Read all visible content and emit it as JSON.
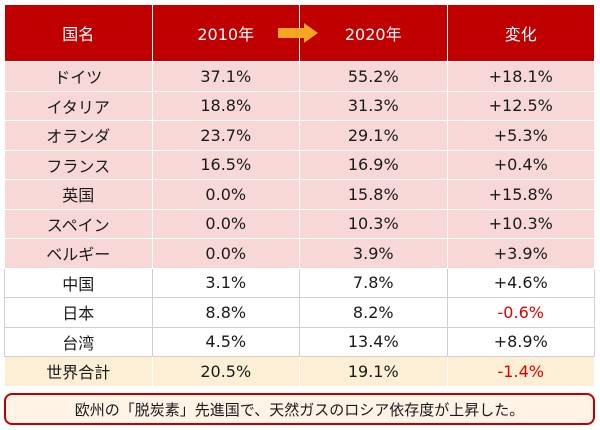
{
  "headers": {
    "country": "国名",
    "y2010": "2010年",
    "y2020": "2020年",
    "change": "変化"
  },
  "rows": [
    {
      "country": "ドイツ",
      "y2010": "37.1%",
      "y2020": "55.2%",
      "change": "+18.1%",
      "style": "hl",
      "negative": false
    },
    {
      "country": "イタリア",
      "y2010": "18.8%",
      "y2020": "31.3%",
      "change": "+12.5%",
      "style": "hl",
      "negative": false
    },
    {
      "country": "オランダ",
      "y2010": "23.7%",
      "y2020": "29.1%",
      "change": "+5.3%",
      "style": "hl",
      "negative": false
    },
    {
      "country": "フランス",
      "y2010": "16.5%",
      "y2020": "16.9%",
      "change": "+0.4%",
      "style": "hl",
      "negative": false
    },
    {
      "country": "英国",
      "y2010": "0.0%",
      "y2020": "15.8%",
      "change": "+15.8%",
      "style": "hl",
      "negative": false
    },
    {
      "country": "スペイン",
      "y2010": "0.0%",
      "y2020": "10.3%",
      "change": "+10.3%",
      "style": "hl",
      "negative": false
    },
    {
      "country": "ベルギー",
      "y2010": "0.0%",
      "y2020": "3.9%",
      "change": "+3.9%",
      "style": "hl",
      "negative": false
    },
    {
      "country": "中国",
      "y2010": "3.1%",
      "y2020": "7.8%",
      "change": "+4.6%",
      "style": "plain",
      "negative": false
    },
    {
      "country": "日本",
      "y2010": "8.8%",
      "y2020": "8.2%",
      "change": "-0.6%",
      "style": "plain",
      "negative": true
    },
    {
      "country": "台湾",
      "y2010": "4.5%",
      "y2020": "13.4%",
      "change": "+8.9%",
      "style": "plain",
      "negative": false
    },
    {
      "country": "世界合計",
      "y2010": "20.5%",
      "y2020": "19.1%",
      "change": "-1.4%",
      "style": "total",
      "negative": true
    }
  ],
  "note": "欧州の「脱炭素」先進国で、天然ガスのロシア依存度が上昇した。",
  "colors": {
    "header_bg": "#c00000",
    "arrow": "#f5a623",
    "highlight_row": "#f8d7d7",
    "total_row": "#fdefd6",
    "negative_text": "#e00000"
  },
  "icons": {
    "arrow": "right-arrow-icon"
  }
}
